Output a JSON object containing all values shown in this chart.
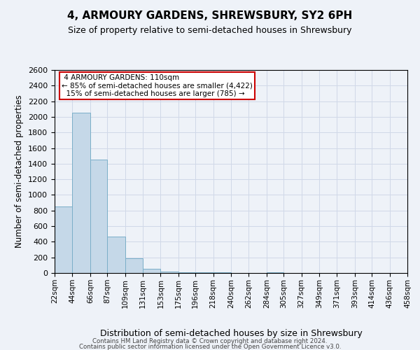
{
  "title": "4, ARMOURY GARDENS, SHREWSBURY, SY2 6PH",
  "subtitle": "Size of property relative to semi-detached houses in Shrewsbury",
  "xlabel": "Distribution of semi-detached houses by size in Shrewsbury",
  "ylabel": "Number of semi-detached properties",
  "bin_edges": [
    22,
    44,
    66,
    87,
    109,
    131,
    153,
    175,
    196,
    218,
    240,
    262,
    284,
    305,
    327,
    349,
    371,
    393,
    414,
    436,
    458
  ],
  "bar_heights": [
    850,
    2050,
    1450,
    470,
    190,
    50,
    22,
    10,
    6,
    5,
    4,
    3,
    5,
    2,
    1,
    1,
    0,
    0,
    0,
    0
  ],
  "bar_color": "#c5d8e8",
  "bar_edge_color": "#7aaec8",
  "property_sqm": 110,
  "property_label": "4 ARMOURY GARDENS: 110sqm",
  "pct_smaller": 85,
  "n_smaller": 4422,
  "pct_larger": 15,
  "n_larger": 785,
  "annotation_box_color": "#ffffff",
  "annotation_box_edge": "#cc0000",
  "ylim": [
    0,
    2600
  ],
  "yticks": [
    0,
    200,
    400,
    600,
    800,
    1000,
    1200,
    1400,
    1600,
    1800,
    2000,
    2200,
    2400,
    2600
  ],
  "grid_color": "#d0d8e8",
  "background_color": "#eef2f8",
  "footer_line1": "Contains HM Land Registry data © Crown copyright and database right 2024.",
  "footer_line2": "Contains public sector information licensed under the Open Government Licence v3.0."
}
